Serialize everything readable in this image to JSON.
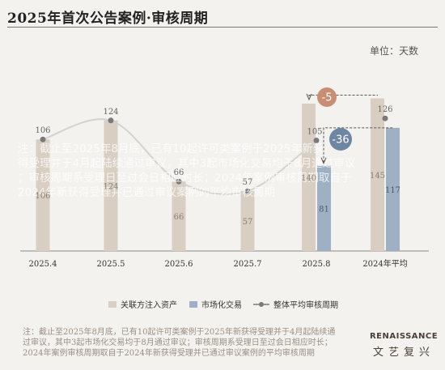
{
  "header": {
    "title": "2025年首次公告案例·审核周期",
    "unit": "单位：天数"
  },
  "chart_data": {
    "type": "bar",
    "categories": [
      "2025.4",
      "2025.5",
      "2025.6",
      "2025.7",
      "2025.8",
      "2024年平均"
    ],
    "ylim": [
      0,
      160
    ],
    "series": [
      {
        "name": "关联方注入资产",
        "color": "#d9cec2",
        "values": [
          106,
          124,
          66,
          57,
          140,
          145
        ]
      },
      {
        "name": "市场化交易",
        "color": "#9fb0c5",
        "values": [
          null,
          null,
          null,
          null,
          81,
          117
        ]
      },
      {
        "name": "整体平均审核周期",
        "type": "line",
        "color": "#7a7a7a",
        "values": [
          106,
          124,
          66,
          57,
          105,
          126
        ]
      }
    ],
    "bar_labels": [
      "106",
      "124",
      "66",
      "57",
      "140",
      "145"
    ],
    "bar2_labels": [
      "",
      "",
      "",
      "",
      "81",
      "117"
    ],
    "line_labels": [
      "106",
      "124",
      "66",
      "57",
      "105",
      "126"
    ],
    "annotations": [
      {
        "text": "-5"
      },
      {
        "text": "-36"
      }
    ],
    "legend_position": "bottom",
    "overlay_text": "注：截止至2025年8月底，已有10起许可类案例于2025年新获得受理并于4月起陆续通过审议，其中3起市场化交易均于8月通过审议；审核周期系受理日至过会日相应时长；2024年案例审核周期取自于2024年新获得受理并已通过审议案例的平均审核周期"
  },
  "footnote": "注：截止至2025年8月底，已有10起许可类案例于2025年新获得受理并于4月起陆续通过审议，其中3起市场化交易均于8月通过审议；审核周期系受理日至过会日相应时长；2024年案例审核周期取自于2024年新获得受理并已通过审议案例的平均审核周期",
  "logo": {
    "en": "RENAISSANCE",
    "cn": "文艺复兴"
  }
}
